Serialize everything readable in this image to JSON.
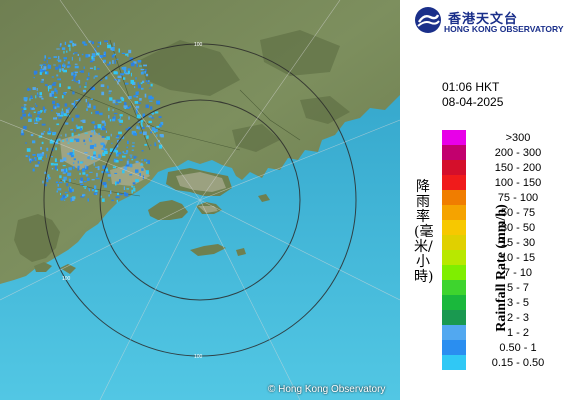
{
  "map": {
    "range_ring_label": "100",
    "copyright": "© Hong Kong Observatory",
    "colors": {
      "sea": "#3fb6d8",
      "land": "#7a8a56",
      "ring": "#333333",
      "echo": "#2d7fe0"
    }
  },
  "legend_panel": {
    "logo": {
      "chinese": "香港天文台",
      "english": "HONG KONG OBSERVATORY",
      "emblem": "hko-logo-icon"
    },
    "time": "01:06 HKT",
    "date": "08-04-2025",
    "axis_label_cn": "降雨率(毫米/小時)",
    "axis_label_en": "Rainfall Rate (mm/h)",
    "scale": [
      {
        "label": ">300",
        "color": "#e800e8"
      },
      {
        "label": "200 - 300",
        "color": "#c2006e"
      },
      {
        "label": "150 - 200",
        "color": "#d40f2b"
      },
      {
        "label": "100 - 150",
        "color": "#f01b1b"
      },
      {
        "label": "75 - 100",
        "color": "#f07d00"
      },
      {
        "label": "50 - 75",
        "color": "#f5a300"
      },
      {
        "label": "30 - 50",
        "color": "#f7c800"
      },
      {
        "label": "15 - 30",
        "color": "#e0d000"
      },
      {
        "label": "10 - 15",
        "color": "#b8e800"
      },
      {
        "label": "7 - 10",
        "color": "#7fee00"
      },
      {
        "label": "5 - 7",
        "color": "#3ed42e"
      },
      {
        "label": "3 - 5",
        "color": "#1ab83c"
      },
      {
        "label": "2 - 3",
        "color": "#1a9950"
      },
      {
        "label": "1 - 2",
        "color": "#52a8f0"
      },
      {
        "label": "0.50 - 1",
        "color": "#2a8ef0"
      },
      {
        "label": "0.15 - 0.50",
        "color": "#30c8f5"
      }
    ]
  }
}
